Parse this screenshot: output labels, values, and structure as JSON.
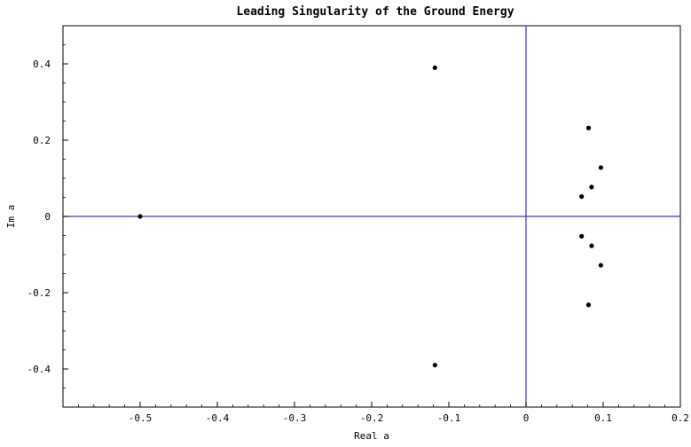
{
  "chart_data": {
    "type": "scatter",
    "title": "Leading Singularity of the Ground Energy",
    "xlabel": "Real a",
    "ylabel": "Im a",
    "xlim": [
      -0.6,
      0.2
    ],
    "ylim": [
      -0.5,
      0.5
    ],
    "xticks": [
      -0.5,
      -0.4,
      -0.3,
      -0.2,
      -0.1,
      0,
      0.1,
      0.2
    ],
    "xtick_labels": [
      "-0.5",
      "-0.4",
      "-0.3",
      "-0.2",
      "-0.1",
      "0",
      "0.1",
      "0.2"
    ],
    "yticks": [
      -0.4,
      -0.2,
      0,
      0.2,
      0.4
    ],
    "ytick_labels": [
      "-0.4",
      "-0.2",
      "0",
      "0.2",
      "0.4"
    ],
    "grid": false,
    "reference_lines": {
      "x": 0,
      "y": 0,
      "color": "#3a3aa0"
    },
    "point_color": "#000000",
    "points": [
      {
        "x": -0.5,
        "y": 0
      },
      {
        "x": -0.118,
        "y": 0.39
      },
      {
        "x": -0.118,
        "y": -0.39
      },
      {
        "x": 0.081,
        "y": 0.232
      },
      {
        "x": 0.081,
        "y": -0.232
      },
      {
        "x": 0.097,
        "y": 0.128
      },
      {
        "x": 0.097,
        "y": -0.128
      },
      {
        "x": 0.085,
        "y": 0.077
      },
      {
        "x": 0.085,
        "y": -0.077
      },
      {
        "x": 0.072,
        "y": 0.052
      },
      {
        "x": 0.072,
        "y": -0.052
      }
    ]
  }
}
